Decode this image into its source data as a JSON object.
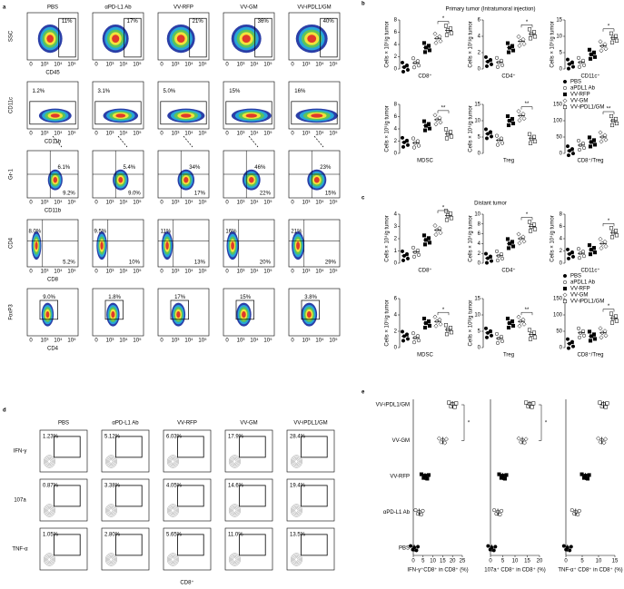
{
  "panels": {
    "a": {
      "letter": "a",
      "groups": [
        "PBS",
        "αPD-L1 Ab",
        "VV-RFP",
        "VV-GM",
        "VV-iPDL1/GM"
      ],
      "ticks": [
        "0",
        "10³",
        "10⁴",
        "10⁵"
      ],
      "rows": [
        {
          "y_label": "SSC",
          "x_label": "CD45",
          "labels": [
            [
              "11%"
            ],
            [
              "17%"
            ],
            [
              "21%"
            ],
            [
              "36%"
            ],
            [
              "40%"
            ]
          ]
        },
        {
          "y_label": "CD11c",
          "x_label": "CD11b",
          "labels": [
            [
              "1.2%"
            ],
            [
              "3.1%"
            ],
            [
              "5.0%"
            ],
            [
              "15%"
            ],
            [
              "16%"
            ]
          ]
        },
        {
          "y_label": "Gr-1",
          "x_label": "CD11b",
          "labels": [
            [
              "6.1%",
              "9.2%"
            ],
            [
              "5.4%",
              "9.0%"
            ],
            [
              "34%",
              "17%"
            ],
            [
              "46%",
              "22%"
            ],
            [
              "23%",
              "15%"
            ]
          ]
        },
        {
          "y_label": "CD4",
          "x_label": "CD8",
          "labels": [
            [
              "8.0%",
              "5.2%"
            ],
            [
              "9.5%",
              "10%"
            ],
            [
              "11%",
              "13%"
            ],
            [
              "16%",
              "20%"
            ],
            [
              "21%",
              "29%"
            ]
          ]
        },
        {
          "y_label": "FoxP3",
          "x_label": "CD4",
          "labels": [
            [
              "9.0%"
            ],
            [
              "1.8%"
            ],
            [
              "17%"
            ],
            [
              "15%"
            ],
            [
              "3.8%"
            ]
          ]
        }
      ]
    },
    "b": {
      "letter": "b",
      "title": "Primary tumor (Intratumoral injection)",
      "legend": [
        "PBS",
        "aPDL1 Ab",
        "VV-RFP",
        "VV-GM",
        "VV-iPDL1/GM"
      ],
      "plots": [
        {
          "x_label": "CD8⁺",
          "y_label": "Cells × 10⁵/g tumor",
          "ylim": [
            0,
            8
          ],
          "yticks": [
            0,
            2,
            4,
            6,
            8
          ],
          "values": [
            0.3,
            1,
            3.5,
            5,
            6.3
          ],
          "sig": "*"
        },
        {
          "x_label": "CD4⁺",
          "y_label": "Cells × 10⁵/g tumor",
          "ylim": [
            0,
            6
          ],
          "yticks": [
            0,
            2,
            4,
            6
          ],
          "values": [
            0.9,
            0.8,
            2.6,
            3.4,
            4.3
          ],
          "sig": "*"
        },
        {
          "x_label": "CD11c⁺",
          "y_label": "Cells × 10⁵/g tumor",
          "ylim": [
            0,
            15
          ],
          "yticks": [
            0,
            5,
            10,
            15
          ],
          "values": [
            1.5,
            2,
            4.5,
            7,
            9.5
          ],
          "sig": "*"
        },
        {
          "x_label": "MDSC",
          "y_label": "Cells × 10⁵/g tumor",
          "ylim": [
            0,
            8
          ],
          "yticks": [
            0,
            2,
            4,
            6,
            8
          ],
          "values": [
            1.8,
            1.7,
            4.5,
            5.5,
            3.2
          ],
          "sig": "**"
        },
        {
          "x_label": "Treg",
          "y_label": "Cells × 10⁴/g tumor",
          "ylim": [
            0,
            15
          ],
          "yticks": [
            0,
            5,
            10,
            15
          ],
          "values": [
            6,
            4,
            10,
            11.5,
            4.5
          ],
          "sig": "**"
        },
        {
          "x_label": "CD8⁺/Treg",
          "ylim": [
            0,
            150
          ],
          "yticks": [
            0,
            50,
            100,
            150
          ],
          "values": [
            8,
            25,
            35,
            50,
            100
          ],
          "sig": "**"
        }
      ]
    },
    "c": {
      "letter": "c",
      "title": "Distant tumor",
      "legend": [
        "PBS",
        "aPDL1 Ab",
        "VV-RFP",
        "VV-GM",
        "VV-iPDL1/GM"
      ],
      "plots": [
        {
          "x_label": "CD8⁺",
          "y_label": "Cells × 10⁴/g tumor",
          "ylim": [
            0,
            4
          ],
          "yticks": [
            0,
            1,
            2,
            3,
            4
          ],
          "values": [
            0.6,
            0.9,
            1.9,
            2.7,
            3.9
          ],
          "sig": "*"
        },
        {
          "x_label": "CD4⁺",
          "y_label": "Cells × 10⁴/g tumor",
          "ylim": [
            0,
            10
          ],
          "yticks": [
            0,
            2,
            4,
            6,
            8,
            10
          ],
          "values": [
            1,
            1.5,
            4,
            5,
            7.5
          ],
          "sig": "*"
        },
        {
          "x_label": "CD11c⁺",
          "y_label": "Cells × 10⁴/g tumor",
          "ylim": [
            0,
            8
          ],
          "yticks": [
            0,
            2,
            4,
            6,
            8
          ],
          "values": [
            1.5,
            1.6,
            2.2,
            3.2,
            5
          ],
          "sig": "*"
        },
        {
          "x_label": "MDSC",
          "y_label": "Cells × 10⁵/g tumor",
          "ylim": [
            0,
            6
          ],
          "yticks": [
            0,
            2,
            4,
            6
          ],
          "values": [
            1.4,
            1.2,
            3,
            3.2,
            2.2
          ],
          "sig": "*"
        },
        {
          "x_label": "Treg",
          "y_label": "Cells × 10³/g tumor",
          "ylim": [
            0,
            15
          ],
          "yticks": [
            0,
            5,
            10,
            15
          ],
          "values": [
            4.5,
            2.8,
            7.5,
            8,
            4
          ],
          "sig": "**"
        },
        {
          "x_label": "CD8⁺/Treg",
          "ylim": [
            0,
            150
          ],
          "yticks": [
            0,
            50,
            100,
            150
          ],
          "values": [
            12,
            45,
            35,
            45,
            90
          ],
          "sig": "*"
        }
      ]
    },
    "d": {
      "letter": "d",
      "groups": [
        "PBS",
        "αPD-L1 Ab",
        "VV-RFP",
        "VV-GM",
        "VV-iPDL1/GM"
      ],
      "x_label": "CD8⁺",
      "rows": [
        {
          "label": "IFN-γ",
          "values": [
            "1.23%",
            "5.12%",
            "6.03%",
            "17.9%",
            "28.4%"
          ]
        },
        {
          "label": "107a",
          "values": [
            "0.87%",
            "3.38%",
            "4.05%",
            "14.6%",
            "19.4%"
          ]
        },
        {
          "label": "TNF-α",
          "values": [
            "1.05%",
            "2.80%",
            "5.65%",
            "11.0%",
            "13.5%"
          ]
        }
      ]
    },
    "e": {
      "letter": "e",
      "categories": [
        "PBS",
        "αPD-L1 Ab",
        "VV-RFP",
        "VV-GM",
        "VV-iPDL1/GM"
      ],
      "plots": [
        {
          "x_label": "IFN-γ⁺CD8⁺ in CD8⁺ (%)",
          "xlim": [
            0,
            25
          ],
          "xticks": [
            0,
            5,
            10,
            15,
            20,
            25
          ],
          "values": [
            0.5,
            3,
            6,
            15,
            20
          ],
          "sig": "*"
        },
        {
          "x_label": "107a⁺ CD8⁺ in CD8⁺ (%)",
          "xlim": [
            0,
            20
          ],
          "xticks": [
            0,
            5,
            10,
            15,
            20
          ],
          "values": [
            0.5,
            3,
            5,
            13,
            16
          ],
          "sig": "*"
        },
        {
          "x_label": "TNF-α⁺ CD8⁺ in CD8⁺ (%)",
          "xlim": [
            0,
            15
          ],
          "xticks": [
            0,
            5,
            10,
            15
          ],
          "values": [
            0.5,
            3,
            6,
            11,
            11.5
          ]
        }
      ]
    }
  }
}
